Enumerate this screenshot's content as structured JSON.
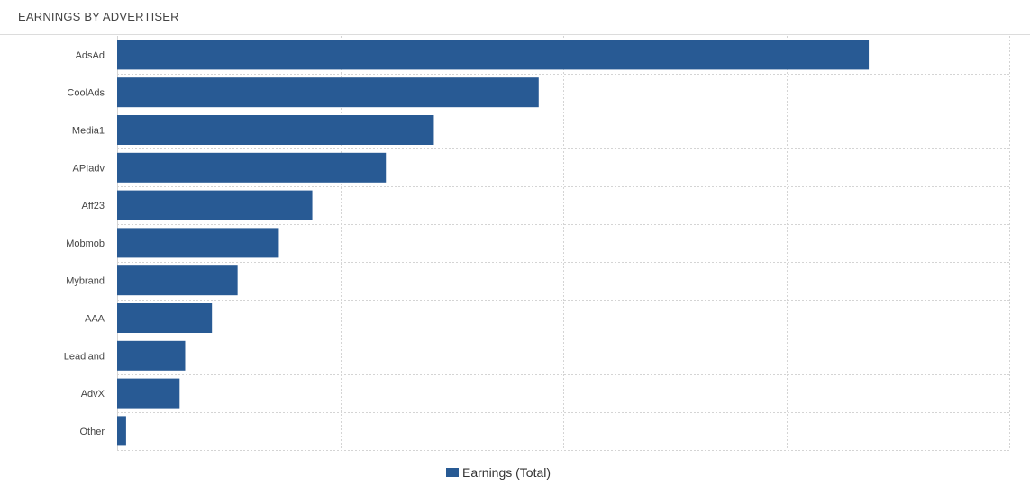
{
  "panel": {
    "title": "EARNINGS BY ADVERTISER"
  },
  "colors": {
    "bar": "#285a94",
    "grid": "#d4d4d4",
    "label": "#444444"
  },
  "chart_data": {
    "type": "bar",
    "orientation": "horizontal",
    "title": "EARNINGS BY ADVERTISER",
    "xlabel": "",
    "ylabel": "",
    "categories": [
      "AdsAd",
      "CoolAds",
      "Media1",
      "APIadv",
      "Aff23",
      "Mobmob",
      "Mybrand",
      "AAA",
      "Leadland",
      "AdvX",
      "Other"
    ],
    "series": [
      {
        "name": "Earnings (Total)",
        "values": [
          3370,
          1890,
          1420,
          1205,
          875,
          725,
          540,
          425,
          305,
          280,
          40
        ]
      }
    ],
    "xlim": [
      0,
      4000
    ],
    "x_tick_labels_shown": false,
    "grid": true,
    "legend": "bottom-center"
  }
}
